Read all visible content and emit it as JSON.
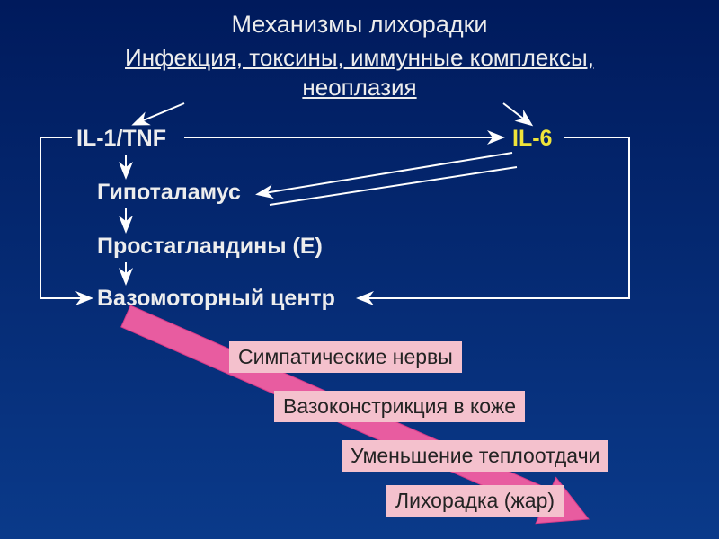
{
  "title": "Механизмы лихорадки",
  "trigger_line1": "Инфекция, токсины, иммунные комплексы,",
  "trigger_line2": "неоплазия",
  "il1tnf": "IL-1/TNF",
  "il6": "IL-6",
  "hypothalamus": "Гипоталамус",
  "prostaglandins": "Простагландины (Е)",
  "vasomotor": "Вазомоторный центр",
  "box1": "Симпатические нервы",
  "box2": "Вазоконстрикция в коже",
  "box3": "Уменьшение теплоотдачи",
  "box4": "Лихорадка (жар)",
  "style": {
    "bg_grad_top": "#001a5c",
    "bg_grad_bottom": "#0a3a8a",
    "text_white": "#ededed",
    "text_yellow": "#f0e43a",
    "box_fill": "#f4c1cd",
    "box_text": "#232323",
    "arrow_stroke": "#fefefe",
    "pink_arrow_fill": "#e85ca0",
    "pink_arrow_stroke": "#d83a88",
    "underline_color": "#ededed",
    "title_fontsize": 27,
    "trigger_fontsize": 26,
    "node_fontsize": 25,
    "box_fontsize": 23,
    "arrow_stroke_width": 2
  }
}
